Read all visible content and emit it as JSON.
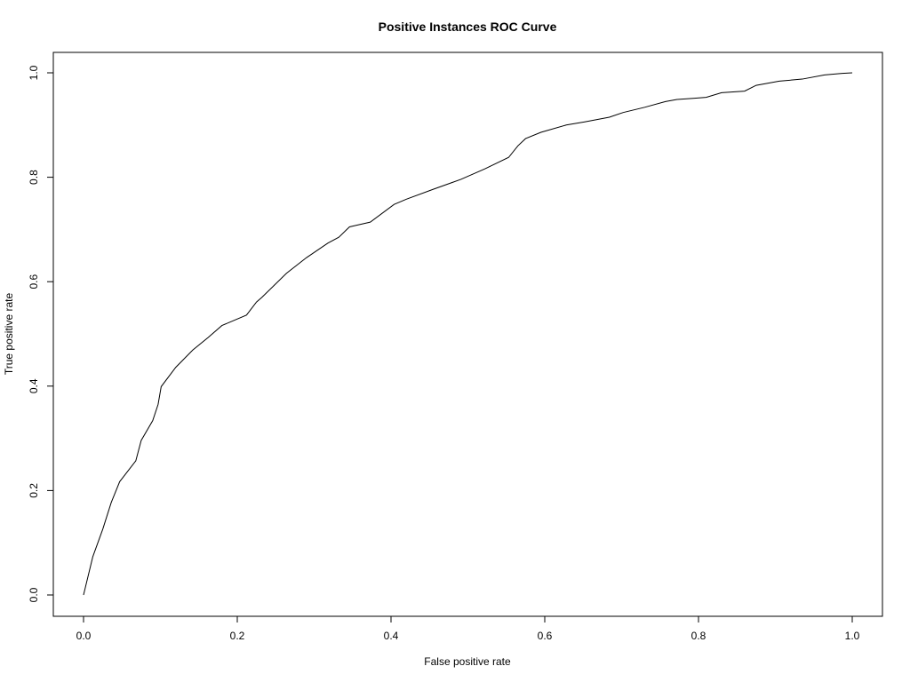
{
  "chart_data": {
    "type": "line",
    "title": "Positive Instances ROC Curve",
    "xlabel": "False positive rate",
    "ylabel": "True positive rate",
    "xlim": [
      0,
      1
    ],
    "ylim": [
      0,
      1
    ],
    "grid": false,
    "legend": "none",
    "colors": {
      "line": "#000000",
      "axes": "#000000",
      "background": "#ffffff"
    },
    "x_ticks": [
      "0.0",
      "0.2",
      "0.4",
      "0.6",
      "0.8",
      "1.0"
    ],
    "y_ticks": [
      "0.0",
      "0.2",
      "0.4",
      "0.6",
      "0.8",
      "1.0"
    ],
    "series": [
      {
        "x": [
          0.0,
          0.012,
          0.025,
          0.036,
          0.047,
          0.068,
          0.075,
          0.09,
          0.097,
          0.101,
          0.12,
          0.142,
          0.162,
          0.18,
          0.212,
          0.225,
          0.232,
          0.264,
          0.29,
          0.318,
          0.332,
          0.346,
          0.373,
          0.404,
          0.42,
          0.455,
          0.491,
          0.522,
          0.553,
          0.565,
          0.575,
          0.595,
          0.628,
          0.652,
          0.684,
          0.702,
          0.73,
          0.757,
          0.772,
          0.793,
          0.81,
          0.83,
          0.86,
          0.875,
          0.905,
          0.935,
          0.964,
          0.987,
          1.0
        ],
        "y": [
          0.0,
          0.073,
          0.126,
          0.177,
          0.217,
          0.257,
          0.296,
          0.334,
          0.365,
          0.399,
          0.436,
          0.469,
          0.493,
          0.516,
          0.536,
          0.561,
          0.57,
          0.616,
          0.646,
          0.674,
          0.685,
          0.705,
          0.714,
          0.748,
          0.758,
          0.777,
          0.796,
          0.816,
          0.838,
          0.86,
          0.874,
          0.886,
          0.9,
          0.906,
          0.915,
          0.924,
          0.934,
          0.945,
          0.949,
          0.951,
          0.953,
          0.962,
          0.965,
          0.976,
          0.984,
          0.988,
          0.996,
          0.999,
          1.0
        ]
      }
    ]
  }
}
